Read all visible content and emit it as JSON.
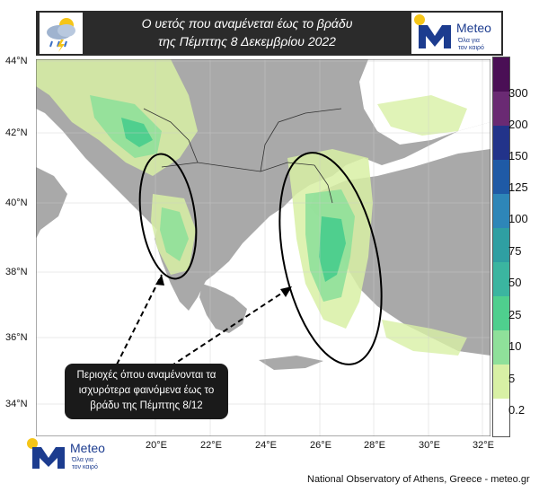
{
  "title": {
    "line1": "Ο υετός που αναμένεται έως το βράδυ",
    "line2": "της Πέμπτης 8 Δεκεμβρίου 2022"
  },
  "logo": {
    "name": "Meteo",
    "tagline1": "Όλα για",
    "tagline2": "τον καιρό"
  },
  "colorbar": {
    "labels": [
      "300",
      "200",
      "150",
      "125",
      "100",
      "75",
      "50",
      "25",
      "10",
      "5",
      "0.2"
    ],
    "colors": [
      "#4a0f55",
      "#6a2a73",
      "#22338a",
      "#1f5aa6",
      "#2e86b8",
      "#2f9fa2",
      "#3bb5a0",
      "#4fcf8e",
      "#8fe09a",
      "#d8f0a5",
      "#ffffff"
    ]
  },
  "axes": {
    "lat": [
      "44°N",
      "42°N",
      "40°N",
      "38°N",
      "36°N",
      "34°N"
    ],
    "lon": [
      "20°E",
      "22°E",
      "24°E",
      "26°E",
      "28°E",
      "30°E",
      "32°E"
    ]
  },
  "annotation": {
    "line1": "Περιοχές όπου αναμένονται τα",
    "line2": "ισχυρότερα φαινόμενα έως το",
    "line3": "βράδυ της Πέμπτης 8/12"
  },
  "credit": "National Observatory of Athens, Greece - meteo.gr",
  "colors": {
    "land": "#a9a9a9",
    "sea": "#ffffff",
    "light_rain": "#d8f0a5",
    "rain": "#8fe09a",
    "heavy": "#4fcf8e"
  }
}
